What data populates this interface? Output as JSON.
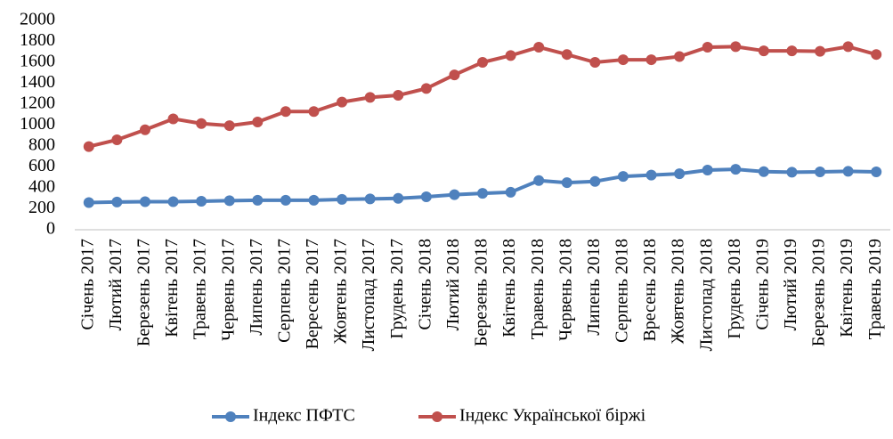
{
  "chart_data": {
    "type": "line",
    "categories": [
      "Січень 2017",
      "Лютий 2017",
      "Березень 2017",
      "Квітень 2017",
      "Травень 2017",
      "Червень 2017",
      "Липень 2017",
      "Серпень 2017",
      "Вересень 2017",
      "Жовтень 2017",
      "Листопад 2017",
      "Грудень 2017",
      "Січень 2018",
      "Лютий 2018",
      "Березень 2018",
      "Квітень 2018",
      "Травень 2018",
      "Червень 2018",
      "Липень 2018",
      "Серпень 2018",
      "Вресень 2018",
      "Жовтень 2018",
      "Листопад 2018",
      "Грудень 2018",
      "Січень 2019",
      "Лютий 2019",
      "Березень 2019",
      "Квітень 2019",
      "Травень 2019"
    ],
    "series": [
      {
        "name": "Індекс ПФТС",
        "color": "#4f81bd",
        "values": [
          260,
          265,
          268,
          268,
          272,
          278,
          282,
          282,
          282,
          290,
          295,
          300,
          315,
          335,
          348,
          358,
          470,
          450,
          462,
          510,
          522,
          535,
          570,
          578,
          555,
          550,
          553,
          558,
          553
        ]
      },
      {
        "name": "Індекс Української біржі",
        "color": "#c0504d",
        "values": [
          795,
          860,
          955,
          1060,
          1015,
          995,
          1030,
          1130,
          1130,
          1220,
          1265,
          1285,
          1350,
          1480,
          1600,
          1665,
          1745,
          1675,
          1600,
          1625,
          1625,
          1655,
          1745,
          1750,
          1710,
          1710,
          1705,
          1750,
          1675
        ]
      }
    ],
    "ylim": [
      0,
      2000
    ],
    "yticks": [
      0,
      200,
      400,
      600,
      800,
      1000,
      1200,
      1400,
      1600,
      1800,
      2000
    ],
    "grid": false,
    "legend": "bottom"
  }
}
